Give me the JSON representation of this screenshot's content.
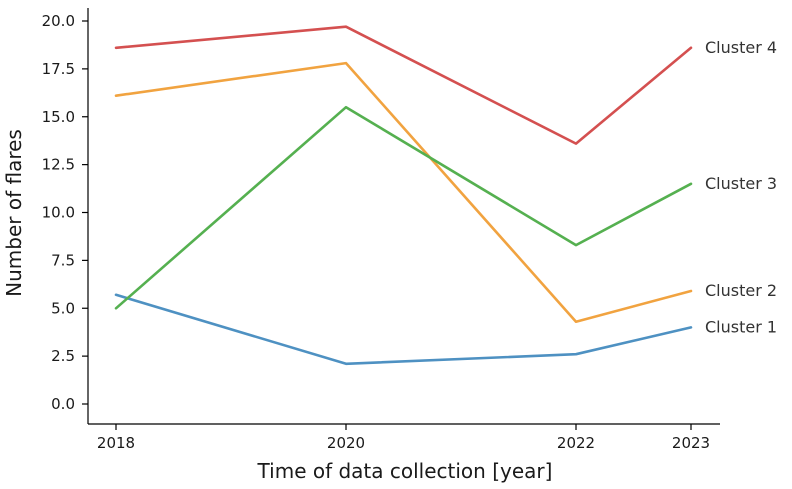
{
  "chart_data": {
    "type": "line",
    "xlabel": "Time of data collection [year]",
    "ylabel": "Number of flares",
    "x": [
      2018,
      2020,
      2022,
      2023
    ],
    "xticks": [
      "2018",
      "2020",
      "2022",
      "2023"
    ],
    "ylim": [
      0,
      20
    ],
    "yticks": [
      "0.0",
      "2.5",
      "5.0",
      "7.5",
      "10.0",
      "12.5",
      "15.0",
      "17.5",
      "20.0"
    ],
    "grid": false,
    "legend": "series labels at right end of lines",
    "series": [
      {
        "name": "Cluster 1",
        "values": [
          5.7,
          2.1,
          2.6,
          4.0
        ],
        "color": "#4e91c2"
      },
      {
        "name": "Cluster 2",
        "values": [
          16.1,
          17.8,
          4.3,
          5.9
        ],
        "color": "#f1a340"
      },
      {
        "name": "Cluster 3",
        "values": [
          5.0,
          15.5,
          8.3,
          11.5
        ],
        "color": "#55b050"
      },
      {
        "name": "Cluster 4",
        "values": [
          18.6,
          19.7,
          13.6,
          18.6
        ],
        "color": "#d45050"
      }
    ]
  }
}
